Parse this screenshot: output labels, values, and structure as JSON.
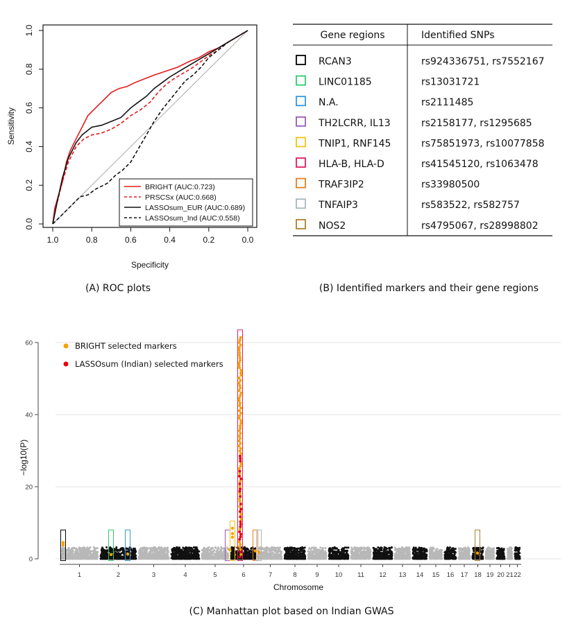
{
  "captions": {
    "a": "(A) ROC plots",
    "b": "(B) Identified markers and their gene regions",
    "c": "(C) Manhattan plot based on Indian GWAS"
  },
  "chart_data": [
    {
      "type": "line",
      "panel": "A",
      "xlabel": "Specificity",
      "ylabel": "Sensitivity",
      "xlim": [
        1.0,
        0.0
      ],
      "ylim": [
        0.0,
        1.0
      ],
      "x_ticks": [
        "1.0",
        "0.8",
        "0.6",
        "0.4",
        "0.2",
        "0.0"
      ],
      "y_ticks": [
        "0.0",
        "0.2",
        "0.4",
        "0.6",
        "0.8",
        "1.0"
      ],
      "legend_position": "bottom-right",
      "series": [
        {
          "name": "BRIGHT (AUC:0.723)",
          "color": "#e41a1c",
          "dash": "solid",
          "points": [
            [
              1.0,
              0.0
            ],
            [
              0.99,
              0.08
            ],
            [
              0.97,
              0.15
            ],
            [
              0.95,
              0.22
            ],
            [
              0.93,
              0.32
            ],
            [
              0.91,
              0.38
            ],
            [
              0.88,
              0.44
            ],
            [
              0.85,
              0.5
            ],
            [
              0.82,
              0.56
            ],
            [
              0.78,
              0.6
            ],
            [
              0.74,
              0.64
            ],
            [
              0.7,
              0.68
            ],
            [
              0.66,
              0.7
            ],
            [
              0.62,
              0.71
            ],
            [
              0.58,
              0.73
            ],
            [
              0.53,
              0.75
            ],
            [
              0.48,
              0.77
            ],
            [
              0.42,
              0.79
            ],
            [
              0.36,
              0.81
            ],
            [
              0.3,
              0.84
            ],
            [
              0.25,
              0.86
            ],
            [
              0.2,
              0.89
            ],
            [
              0.15,
              0.91
            ],
            [
              0.1,
              0.94
            ],
            [
              0.05,
              0.97
            ],
            [
              0.0,
              1.0
            ]
          ]
        },
        {
          "name": "PRSCSx (AUC:0.668)",
          "color": "#e41a1c",
          "dash": "dashed",
          "points": [
            [
              1.0,
              0.0
            ],
            [
              0.98,
              0.1
            ],
            [
              0.95,
              0.22
            ],
            [
              0.92,
              0.32
            ],
            [
              0.88,
              0.4
            ],
            [
              0.84,
              0.44
            ],
            [
              0.8,
              0.46
            ],
            [
              0.75,
              0.47
            ],
            [
              0.7,
              0.49
            ],
            [
              0.65,
              0.52
            ],
            [
              0.6,
              0.56
            ],
            [
              0.55,
              0.59
            ],
            [
              0.5,
              0.63
            ],
            [
              0.46,
              0.68
            ],
            [
              0.42,
              0.72
            ],
            [
              0.38,
              0.75
            ],
            [
              0.33,
              0.78
            ],
            [
              0.28,
              0.81
            ],
            [
              0.24,
              0.84
            ],
            [
              0.2,
              0.87
            ],
            [
              0.15,
              0.9
            ],
            [
              0.1,
              0.94
            ],
            [
              0.05,
              0.97
            ],
            [
              0.0,
              1.0
            ]
          ]
        },
        {
          "name": "LASSOsum_EUR (AUC:0.689)",
          "color": "#111111",
          "dash": "solid",
          "points": [
            [
              1.0,
              0.0
            ],
            [
              0.98,
              0.1
            ],
            [
              0.95,
              0.24
            ],
            [
              0.92,
              0.34
            ],
            [
              0.88,
              0.42
            ],
            [
              0.85,
              0.46
            ],
            [
              0.8,
              0.5
            ],
            [
              0.75,
              0.51
            ],
            [
              0.7,
              0.53
            ],
            [
              0.65,
              0.55
            ],
            [
              0.6,
              0.6
            ],
            [
              0.56,
              0.63
            ],
            [
              0.52,
              0.66
            ],
            [
              0.48,
              0.7
            ],
            [
              0.44,
              0.73
            ],
            [
              0.4,
              0.76
            ],
            [
              0.35,
              0.79
            ],
            [
              0.3,
              0.82
            ],
            [
              0.25,
              0.85
            ],
            [
              0.2,
              0.88
            ],
            [
              0.15,
              0.91
            ],
            [
              0.1,
              0.94
            ],
            [
              0.05,
              0.97
            ],
            [
              0.0,
              1.0
            ]
          ]
        },
        {
          "name": "LASSOsum_Ind (AUC:0.558)",
          "color": "#111111",
          "dash": "dashed",
          "points": [
            [
              1.0,
              0.0
            ],
            [
              0.95,
              0.05
            ],
            [
              0.9,
              0.1
            ],
            [
              0.86,
              0.14
            ],
            [
              0.82,
              0.15
            ],
            [
              0.78,
              0.18
            ],
            [
              0.72,
              0.21
            ],
            [
              0.68,
              0.25
            ],
            [
              0.64,
              0.28
            ],
            [
              0.6,
              0.32
            ],
            [
              0.56,
              0.39
            ],
            [
              0.52,
              0.46
            ],
            [
              0.48,
              0.53
            ],
            [
              0.44,
              0.59
            ],
            [
              0.4,
              0.64
            ],
            [
              0.36,
              0.69
            ],
            [
              0.32,
              0.74
            ],
            [
              0.28,
              0.77
            ],
            [
              0.24,
              0.81
            ],
            [
              0.2,
              0.86
            ],
            [
              0.15,
              0.9
            ],
            [
              0.1,
              0.94
            ],
            [
              0.05,
              0.97
            ],
            [
              0.0,
              1.0
            ]
          ]
        }
      ]
    },
    {
      "type": "table",
      "panel": "B",
      "columns": [
        "Gene regions",
        "Identified SNPs"
      ],
      "rows": [
        {
          "gene": "RCAN3",
          "snps": "rs924336751, rs7552167",
          "color": "#000000"
        },
        {
          "gene": "LINC01185",
          "snps": "rs13031721",
          "color": "#2ecc71"
        },
        {
          "gene": "N.A.",
          "snps": "rs2111485",
          "color": "#3498db"
        },
        {
          "gene": "TH2LCRR, IL13",
          "snps": "rs2158177, rs1295685",
          "color": "#9b59b6"
        },
        {
          "gene": "TNIP1, RNF145",
          "snps": "rs75851973, rs10077858",
          "color": "#f1c40f"
        },
        {
          "gene": "HLA-B, HLA-D",
          "snps": "rs41545120, rs1063478",
          "color": "#e6195f"
        },
        {
          "gene": "TRAF3IP2",
          "snps": "rs33980500",
          "color": "#e67e22"
        },
        {
          "gene": "TNFAIP3",
          "snps": "rs583522, rs582757",
          "color": "#a7b8bd"
        },
        {
          "gene": "NOS2",
          "snps": "rs4795067, rs28998802",
          "color": "#b07d2c"
        }
      ]
    },
    {
      "type": "scatter",
      "panel": "C",
      "xlabel": "Chromosome",
      "ylabel": "−log10(P)",
      "ylim": [
        0,
        63
      ],
      "y_ticks": [
        "0",
        "20",
        "40",
        "60"
      ],
      "chromosomes": [
        "1",
        "2",
        "3",
        "4",
        "5",
        "6",
        "7",
        "8",
        "9",
        "10",
        "11",
        "12",
        "13",
        "14",
        "15",
        "16",
        "17",
        "18",
        "19",
        "20",
        "21",
        "22"
      ],
      "legend": [
        {
          "label": "BRIGHT selected markers",
          "color": "#f5a100"
        },
        {
          "label": "LASSOsum (Indian) selected markers",
          "color": "#e8000b"
        }
      ],
      "highlight_regions": [
        {
          "chrom": "1",
          "ymax": 7.5,
          "color": "#000000"
        },
        {
          "chrom": "2",
          "ymax": 7.5,
          "color": "#2ecc71"
        },
        {
          "chrom": "2",
          "ymax": 7.5,
          "color": "#3498db"
        },
        {
          "chrom": "5",
          "ymax": 7.5,
          "color": "#9b59b6"
        },
        {
          "chrom": "5",
          "ymax": 10,
          "color": "#f1c40f"
        },
        {
          "chrom": "6",
          "ymax": 63,
          "color": "#e6195f"
        },
        {
          "chrom": "6",
          "ymax": 7.5,
          "color": "#e67e22"
        },
        {
          "chrom": "6",
          "ymax": 7.5,
          "color": "#a7b8bd"
        },
        {
          "chrom": "17",
          "ymax": 7.5,
          "color": "#b07d2c"
        }
      ],
      "peak_markers": {
        "chrom": "6",
        "max_log10p": 62
      }
    }
  ]
}
